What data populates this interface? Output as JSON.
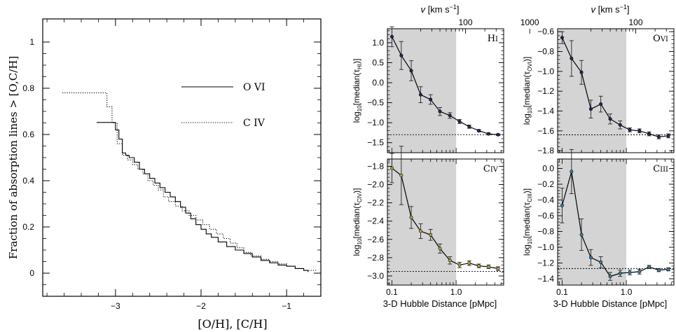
{
  "chart_data": [
    {
      "type": "line",
      "xlabel": "[O/H], [C/H]",
      "ylabel": "Fraction of absorption lines > [O,C/H]",
      "xlim": [
        -3.85,
        -0.6
      ],
      "ylim": [
        -0.1,
        1.1
      ],
      "x_ticks": [
        -3,
        -2,
        -1
      ],
      "x_tick_labels": [
        "−3",
        "−2",
        "−1"
      ],
      "y_ticks": [
        0,
        0.2,
        0.4,
        0.6,
        0.8,
        1
      ],
      "y_tick_labels": [
        "0",
        "0.2",
        "0.4",
        "0.6",
        "0.8",
        "1"
      ],
      "legend_position": "upper-right",
      "series": [
        {
          "name": "O VI",
          "style": "solid",
          "x": [
            -3.22,
            -3.0,
            -2.96,
            -2.92,
            -2.88,
            -2.84,
            -2.78,
            -2.72,
            -2.66,
            -2.6,
            -2.54,
            -2.48,
            -2.42,
            -2.36,
            -2.3,
            -2.24,
            -2.18,
            -2.12,
            -2.06,
            -2.0,
            -1.94,
            -1.88,
            -1.8,
            -1.7,
            -1.6,
            -1.5,
            -1.4,
            -1.3,
            -1.2,
            -1.1,
            -1.0,
            -0.9,
            -0.8,
            -0.75
          ],
          "y": [
            0.652,
            0.62,
            0.58,
            0.52,
            0.51,
            0.5,
            0.48,
            0.45,
            0.43,
            0.41,
            0.39,
            0.37,
            0.35,
            0.33,
            0.31,
            0.285,
            0.26,
            0.235,
            0.21,
            0.19,
            0.17,
            0.155,
            0.135,
            0.115,
            0.1,
            0.085,
            0.07,
            0.055,
            0.045,
            0.035,
            0.03,
            0.02,
            0.012,
            0.005
          ]
        },
        {
          "name": "C IV",
          "style": "dotted",
          "x": [
            -3.62,
            -3.2,
            -3.1,
            -3.04,
            -2.98,
            -2.92,
            -2.86,
            -2.8,
            -2.74,
            -2.68,
            -2.62,
            -2.56,
            -2.5,
            -2.44,
            -2.38,
            -2.3,
            -2.22,
            -2.14,
            -2.06,
            -1.98,
            -1.9,
            -1.82,
            -1.74,
            -1.66,
            -1.58,
            -1.5,
            -1.42,
            -1.3,
            -1.2,
            -1.1,
            -1.0,
            -0.9,
            -0.8,
            -0.65
          ],
          "y": [
            0.78,
            0.78,
            0.72,
            0.65,
            0.56,
            0.51,
            0.49,
            0.47,
            0.45,
            0.43,
            0.4,
            0.38,
            0.36,
            0.33,
            0.31,
            0.29,
            0.27,
            0.25,
            0.23,
            0.21,
            0.19,
            0.17,
            0.15,
            0.13,
            0.11,
            0.09,
            0.075,
            0.06,
            0.05,
            0.04,
            0.03,
            0.02,
            0.012,
            0.008
          ]
        }
      ]
    },
    {
      "type": "line",
      "ion_label_main": "H",
      "ion_label_stage": "I",
      "xlabel": "",
      "top_axis_label_symbol": "v",
      "top_axis_label_units": " [km s",
      "top_axis_label_exp": "−1",
      "top_axis_label_close": "]",
      "ylabel_prefix": "log",
      "ylabel_sub": "10",
      "ylabel_mid": "[median(",
      "ylabel_tau": "τ",
      "ylabel_tau_sub": "HI",
      "ylabel_close": ")]",
      "xscale": "log",
      "xlim": [
        0.085,
        5.5
      ],
      "ylim": [
        -1.75,
        1.35
      ],
      "x_ticks": [
        0.1,
        1.0
      ],
      "x_tick_labels": [
        "0.1",
        "1.0"
      ],
      "top_ticks_pmpc": [
        1.4,
        14
      ],
      "top_tick_labels": [
        "100",
        "1000"
      ],
      "y_ticks": [
        -1.5,
        -1.0,
        -0.5,
        0.0,
        0.5,
        1.0
      ],
      "y_tick_labels": [
        "−1.5",
        "−1.0",
        "−0.5",
        "0.0",
        "0.5",
        "1.0"
      ],
      "shaded_x_range": [
        0.085,
        1.0
      ],
      "reference_level": -1.3,
      "marker_color": "#1e2a5a",
      "x": [
        0.1,
        0.14,
        0.2,
        0.28,
        0.4,
        0.56,
        0.8,
        1.13,
        1.6,
        2.26,
        3.2,
        4.5
      ],
      "y": [
        1.15,
        0.68,
        0.3,
        -0.3,
        -0.42,
        -0.72,
        -0.82,
        -0.97,
        -1.1,
        -1.2,
        -1.28,
        -1.3
      ],
      "err": [
        0.25,
        0.35,
        0.25,
        0.2,
        0.12,
        0.1,
        0.07,
        0.05,
        0.04,
        0.03,
        0.025,
        0.02
      ]
    },
    {
      "type": "line",
      "ion_label_main": "O",
      "ion_label_stage": "VI",
      "xlabel": "",
      "top_axis_label_symbol": "v",
      "top_axis_label_units": " [km s",
      "top_axis_label_exp": "−1",
      "top_axis_label_close": "]",
      "ylabel_prefix": "log",
      "ylabel_sub": "10",
      "ylabel_mid": "[median(",
      "ylabel_tau": "τ",
      "ylabel_tau_sub": "OVI",
      "ylabel_close": ")]",
      "xscale": "log",
      "xlim": [
        0.085,
        5.5
      ],
      "ylim": [
        -1.82,
        -0.57
      ],
      "x_ticks": [
        0.1,
        1.0
      ],
      "x_tick_labels": [
        "0.1",
        "1.0"
      ],
      "top_ticks_pmpc": [
        1.4,
        14
      ],
      "top_tick_labels": [
        "100",
        "1000"
      ],
      "y_ticks": [
        -1.8,
        -1.6,
        -1.4,
        -1.2,
        -1.0,
        -0.8,
        -0.6
      ],
      "y_tick_labels": [
        "−1.8",
        "−1.6",
        "−1.4",
        "−1.2",
        "−1.0",
        "−0.8",
        "−0.6"
      ],
      "shaded_x_range": [
        0.085,
        1.0
      ],
      "reference_level": -1.64,
      "marker_color": "#1e2a5a",
      "x": [
        0.1,
        0.14,
        0.2,
        0.28,
        0.4,
        0.56,
        0.8,
        1.13,
        1.6,
        2.26,
        3.2,
        4.5
      ],
      "y": [
        -0.66,
        -0.87,
        -1.01,
        -1.38,
        -1.33,
        -1.48,
        -1.54,
        -1.59,
        -1.6,
        -1.63,
        -1.66,
        -1.65
      ],
      "err": [
        0.06,
        0.18,
        0.12,
        0.09,
        0.08,
        0.05,
        0.04,
        0.02,
        0.02,
        0.02,
        0.02,
        0.02
      ]
    },
    {
      "type": "line",
      "ion_label_main": "C",
      "ion_label_stage": "IV",
      "xlabel": "3-D Hubble Distance [pMpc]",
      "ylabel_prefix": "log",
      "ylabel_sub": "10",
      "ylabel_mid": "[median(",
      "ylabel_tau": "τ",
      "ylabel_tau_sub": "CIV",
      "ylabel_close": ")]",
      "xscale": "log",
      "xlim": [
        0.085,
        5.5
      ],
      "ylim": [
        -3.1,
        -1.72
      ],
      "x_ticks": [
        0.1,
        1.0
      ],
      "x_tick_labels": [
        "0.1",
        "1.0"
      ],
      "y_ticks": [
        -3.0,
        -2.8,
        -2.6,
        -2.4,
        -2.2,
        -2.0,
        -1.8
      ],
      "y_tick_labels": [
        "−3.0",
        "−2.8",
        "−2.6",
        "−2.4",
        "−2.2",
        "−2.0",
        "−1.8"
      ],
      "shaded_x_range": [
        0.085,
        1.0
      ],
      "reference_level": -2.95,
      "marker_color": "#b8a23a",
      "x": [
        0.1,
        0.14,
        0.2,
        0.28,
        0.4,
        0.56,
        0.8,
        1.13,
        1.6,
        2.26,
        3.2,
        4.5
      ],
      "y": [
        -1.82,
        -1.9,
        -2.36,
        -2.51,
        -2.55,
        -2.7,
        -2.83,
        -2.88,
        -2.86,
        -2.89,
        -2.9,
        -2.92
      ],
      "err": [
        0.16,
        0.32,
        0.12,
        0.08,
        0.06,
        0.05,
        0.04,
        0.03,
        0.025,
        0.02,
        0.02,
        0.02
      ]
    },
    {
      "type": "line",
      "ion_label_main": "C",
      "ion_label_stage": "III",
      "xlabel": "3-D Hubble Distance [pMpc]",
      "ylabel_prefix": "log",
      "ylabel_sub": "10",
      "ylabel_mid": "[median(",
      "ylabel_tau": "τ",
      "ylabel_tau_sub": "CIII",
      "ylabel_close": ")]",
      "xscale": "log",
      "xlim": [
        0.085,
        5.5
      ],
      "ylim": [
        -1.48,
        0.12
      ],
      "x_ticks": [
        0.1,
        1.0
      ],
      "x_tick_labels": [
        "0.1",
        "1.0"
      ],
      "y_ticks": [
        -1.4,
        -1.2,
        -1.0,
        -0.8,
        -0.6,
        -0.4,
        -0.2,
        0.0
      ],
      "y_tick_labels": [
        "−1.4",
        "−1.2",
        "−1.0",
        "−0.8",
        "−0.6",
        "−0.4",
        "−0.2",
        "0.0"
      ],
      "shaded_x_range": [
        0.085,
        1.0
      ],
      "reference_level": -1.27,
      "marker_color": "#3a7fa8",
      "x": [
        0.1,
        0.14,
        0.2,
        0.28,
        0.4,
        0.56,
        0.8,
        1.13,
        1.6,
        2.26,
        3.2,
        4.5
      ],
      "y": [
        -0.47,
        -0.04,
        -0.84,
        -1.13,
        -1.19,
        -1.37,
        -1.33,
        -1.32,
        -1.31,
        -1.25,
        -1.29,
        -1.28
      ],
      "err": [
        0.22,
        0.28,
        0.2,
        0.1,
        0.07,
        0.05,
        0.04,
        0.03,
        0.03,
        0.02,
        0.02,
        0.02
      ]
    }
  ]
}
